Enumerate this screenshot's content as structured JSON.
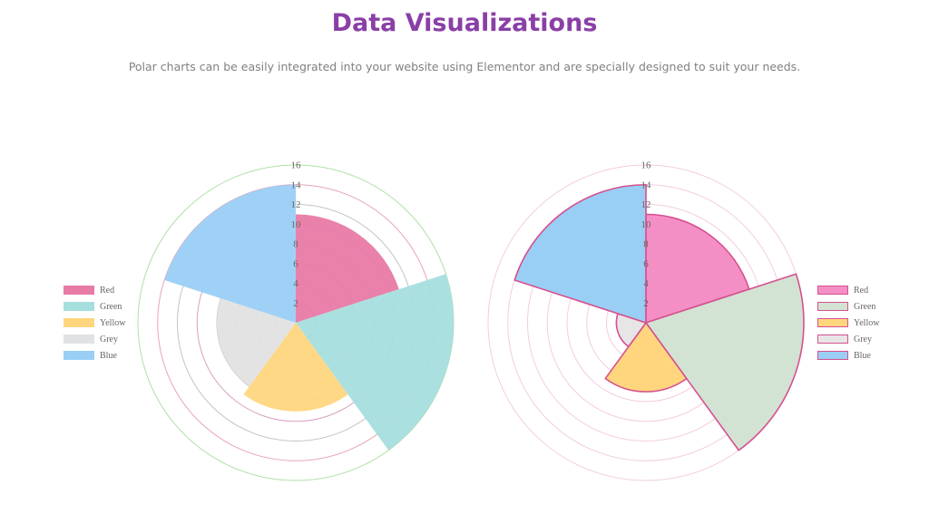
{
  "header": {
    "title": "Data Visualizations",
    "subtitle": "Polar charts can be easily integrated into your website using Elementor and are specially designed to suit your needs."
  },
  "chart_data": [
    {
      "type": "polarArea",
      "categories": [
        "Red",
        "Green",
        "Yellow",
        "Grey",
        "Blue"
      ],
      "values": [
        11,
        16,
        9,
        8,
        14
      ],
      "tick_labels": [
        "2",
        "4",
        "6",
        "8",
        "10",
        "12",
        "14",
        "16"
      ],
      "rlim": [
        0,
        16
      ],
      "colors": [
        "#e87aa6",
        "#a6dede",
        "#ffd67e",
        "#e1e2e3",
        "#9acff5"
      ],
      "border_color": "none",
      "ring_colors": [
        "#d9a0c2",
        "#c4c4c4",
        "#e8a5b6",
        "#c4c4c4",
        "#d9a0c2",
        "#c4c4c4",
        "#e8a5b6",
        "#b0dfa8"
      ],
      "legend_position": "left"
    },
    {
      "type": "polarArea",
      "categories": [
        "Red",
        "Green",
        "Yellow",
        "Grey",
        "Blue"
      ],
      "values": [
        11,
        16,
        7,
        3,
        14
      ],
      "tick_labels": [
        "2",
        "4",
        "6",
        "8",
        "10",
        "12",
        "14",
        "16"
      ],
      "rlim": [
        0,
        16
      ],
      "colors": [
        "#f48fc6",
        "#d2e3d3",
        "#ffd67e",
        "#e6e6e6",
        "#9acff5"
      ],
      "border_color": "#d6508f",
      "ring_colors": [
        "#f2cede",
        "#f2cede",
        "#f2cede",
        "#f2cede",
        "#f2cede",
        "#f2cede",
        "#f2cede",
        "#f2cede"
      ],
      "legend_position": "right"
    }
  ]
}
